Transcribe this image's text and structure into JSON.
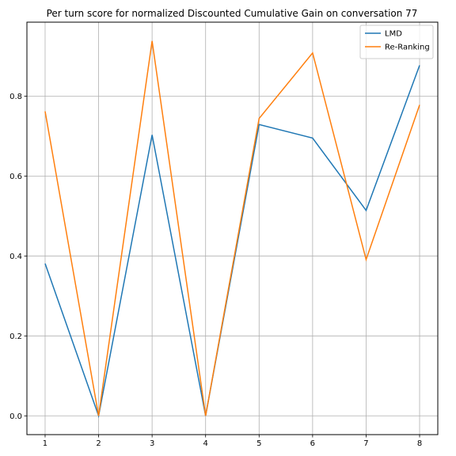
{
  "chart_data": {
    "type": "line",
    "title": "Per turn score for normalized Discounted Cumulative Gain on conversation 77",
    "xlabel": "",
    "ylabel": "",
    "x": [
      1,
      2,
      3,
      4,
      5,
      6,
      7,
      8
    ],
    "x_ticks": [
      "1",
      "2",
      "3",
      "4",
      "5",
      "6",
      "7",
      "8"
    ],
    "y_ticks": [
      "0.0",
      "0.2",
      "0.4",
      "0.6",
      "0.8"
    ],
    "xlim": [
      0.66,
      8.34
    ],
    "ylim": [
      -0.047,
      0.985
    ],
    "grid": true,
    "legend_position": "top-right",
    "series": [
      {
        "name": "LMD",
        "color": "#1f77b4",
        "values": [
          0.381,
          0.0,
          0.703,
          0.0,
          0.729,
          0.695,
          0.514,
          0.877
        ]
      },
      {
        "name": "Re-Ranking",
        "color": "#ff7f0e",
        "values": [
          0.762,
          0.0,
          0.938,
          0.0,
          0.744,
          0.908,
          0.391,
          0.778
        ]
      }
    ]
  }
}
